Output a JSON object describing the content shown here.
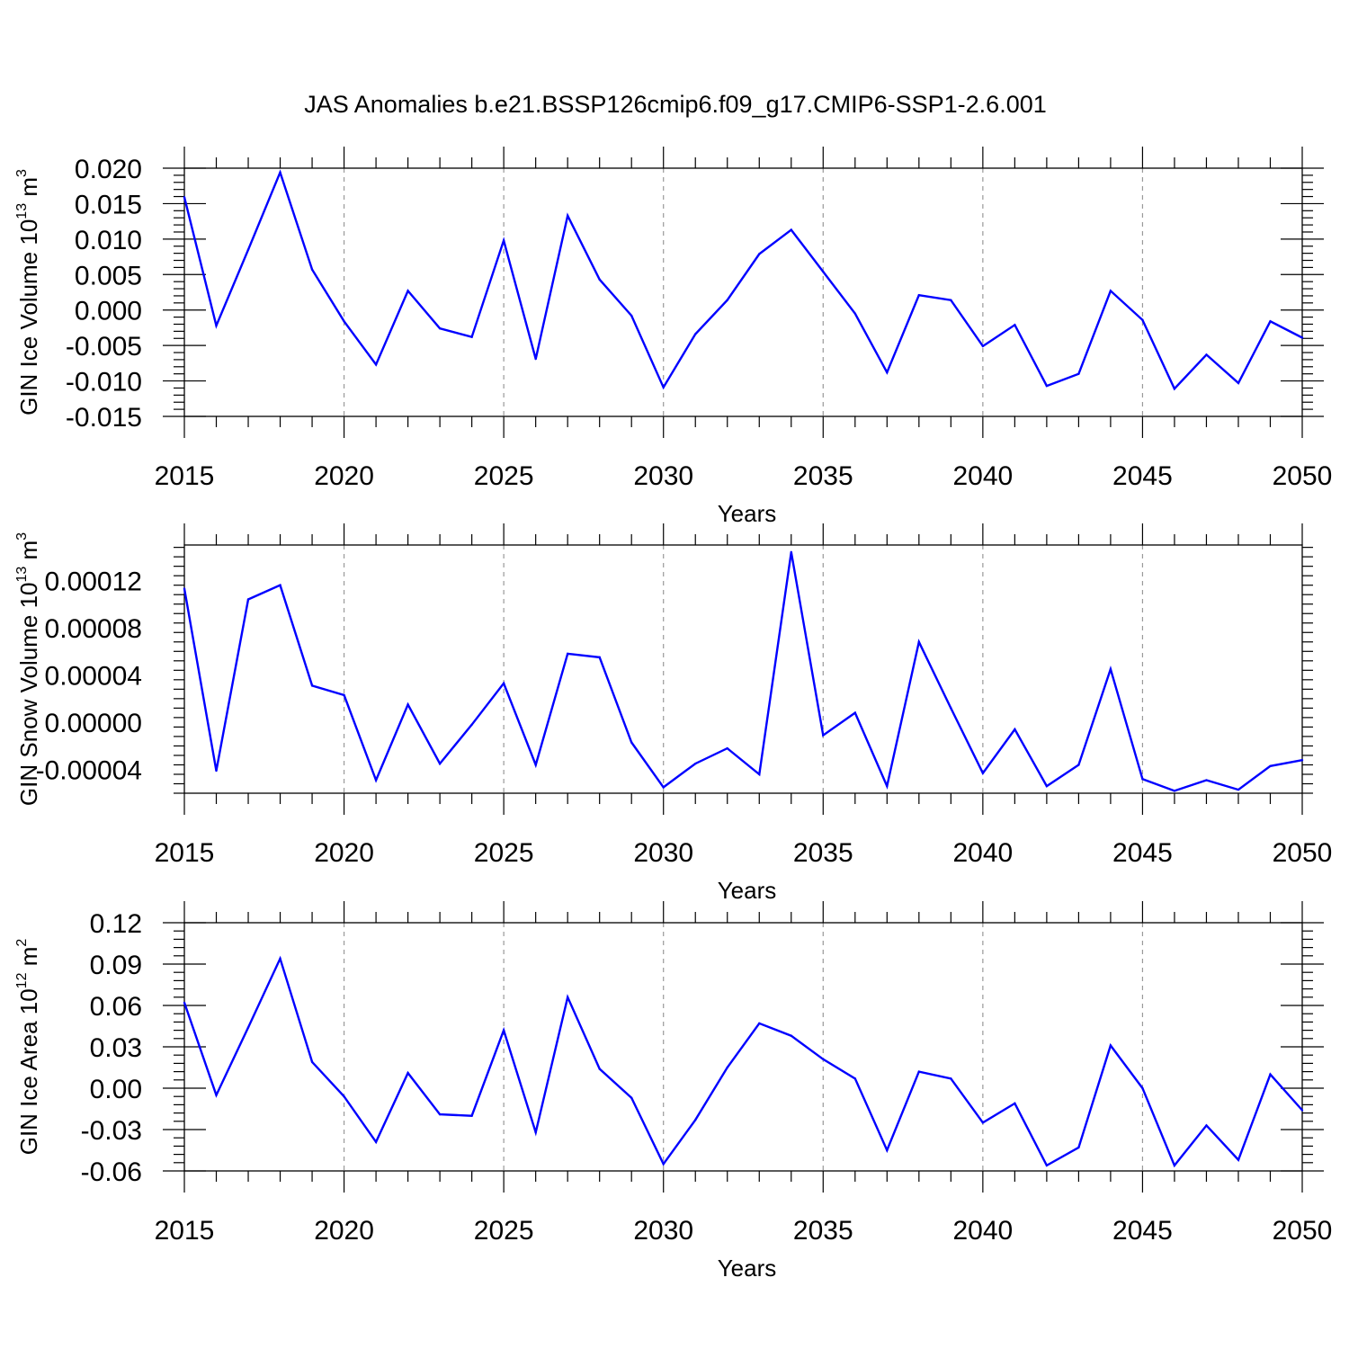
{
  "title": "JAS Anomalies b.e21.BSSP126cmip6.f09_g17.CMIP6-SSP1-2.6.001",
  "colors": {
    "line": "#0000ff",
    "axis": "#000000",
    "grid": "#999999"
  },
  "chart_data": [
    {
      "type": "line",
      "ylabel": {
        "base": "GIN Ice Volume 10",
        "exp": "13",
        "unit": " m",
        "unit_exp": "3"
      },
      "xlabel": "Years",
      "xlim": [
        2015,
        2050
      ],
      "ylim": [
        -0.015,
        0.02
      ],
      "xticks": [
        "2015",
        "2020",
        "2025",
        "2030",
        "2035",
        "2040",
        "2045",
        "2050"
      ],
      "yticks": [
        "0.020",
        "0.015",
        "0.010",
        "0.005",
        "0.000",
        "-0.005",
        "-0.010",
        "-0.015"
      ],
      "grid": "x-dashed",
      "x": [
        2015,
        2016,
        2017,
        2018,
        2019,
        2020,
        2021,
        2022,
        2023,
        2024,
        2025,
        2026,
        2027,
        2028,
        2029,
        2030,
        2031,
        2032,
        2033,
        2034,
        2035,
        2036,
        2037,
        2038,
        2039,
        2040,
        2041,
        2042,
        2043,
        2044,
        2045,
        2046,
        2047,
        2048,
        2049,
        2050
      ],
      "values": [
        0.0159,
        -0.0022,
        0.0085,
        0.0194,
        0.0057,
        -0.0016,
        -0.0077,
        0.0027,
        -0.0026,
        -0.0038,
        0.0098,
        -0.0069,
        0.0133,
        0.0043,
        -0.0008,
        -0.0109,
        -0.0034,
        0.0014,
        0.0079,
        0.0113,
        0.0054,
        -0.0005,
        -0.0088,
        0.0021,
        0.0014,
        -0.0051,
        -0.0021,
        -0.0107,
        -0.009,
        0.0027,
        -0.0014,
        -0.0111,
        -0.0063,
        -0.0103,
        -0.0016,
        -0.0039
      ]
    },
    {
      "type": "line",
      "ylabel": {
        "base": "GIN Snow Volume 10",
        "exp": "13",
        "unit": " m",
        "unit_exp": "3"
      },
      "xlabel": "Years",
      "xlim": [
        2015,
        2050
      ],
      "ylim": [
        -6e-05,
        0.00015
      ],
      "xticks": [
        "2015",
        "2020",
        "2025",
        "2030",
        "2035",
        "2040",
        "2045",
        "2050"
      ],
      "yticks": [
        "0.00012",
        "0.00008",
        "0.00004",
        "0.00000",
        "-0.00004"
      ],
      "grid": "x-dashed",
      "x": [
        2015,
        2016,
        2017,
        2018,
        2019,
        2020,
        2021,
        2022,
        2023,
        2024,
        2025,
        2026,
        2027,
        2028,
        2029,
        2030,
        2031,
        2032,
        2033,
        2034,
        2035,
        2036,
        2037,
        2038,
        2039,
        2040,
        2041,
        2042,
        2043,
        2044,
        2045,
        2046,
        2047,
        2048,
        2049,
        2050
      ],
      "values": [
        0.000113,
        -4.1e-05,
        0.000104,
        0.000116,
        3.1e-05,
        2.3e-05,
        -4.9e-05,
        1.5e-05,
        -3.5e-05,
        -2e-06,
        3.3e-05,
        -3.6e-05,
        5.8e-05,
        5.5e-05,
        -1.7e-05,
        -5.5e-05,
        -3.5e-05,
        -2.2e-05,
        -4.4e-05,
        0.000144,
        -1.1e-05,
        8e-06,
        -5.4e-05,
        6.8e-05,
        1.2e-05,
        -4.3e-05,
        -6e-06,
        -5.4e-05,
        -3.6e-05,
        4.5e-05,
        -4.8e-05,
        -5.8e-05,
        -4.9e-05,
        -5.7e-05,
        -3.7e-05,
        -3.2e-05
      ]
    },
    {
      "type": "line",
      "ylabel": {
        "base": "GIN Ice Area 10",
        "exp": "12",
        "unit": " m",
        "unit_exp": "2"
      },
      "xlabel": "Years",
      "xlim": [
        2015,
        2050
      ],
      "ylim": [
        -0.06,
        0.12
      ],
      "xticks": [
        "2015",
        "2020",
        "2025",
        "2030",
        "2035",
        "2040",
        "2045",
        "2050"
      ],
      "yticks": [
        "0.12",
        "0.09",
        "0.06",
        "0.03",
        "0.00",
        "-0.03",
        "-0.06"
      ],
      "grid": "x-dashed",
      "x": [
        2015,
        2016,
        2017,
        2018,
        2019,
        2020,
        2021,
        2022,
        2023,
        2024,
        2025,
        2026,
        2027,
        2028,
        2029,
        2030,
        2031,
        2032,
        2033,
        2034,
        2035,
        2036,
        2037,
        2038,
        2039,
        2040,
        2041,
        2042,
        2043,
        2044,
        2045,
        2046,
        2047,
        2048,
        2049,
        2050
      ],
      "values": [
        0.062,
        -0.005,
        0.044,
        0.094,
        0.019,
        -0.006,
        -0.039,
        0.011,
        -0.019,
        -0.02,
        0.042,
        -0.032,
        0.066,
        0.014,
        -0.007,
        -0.055,
        -0.023,
        0.015,
        0.047,
        0.038,
        0.021,
        0.007,
        -0.045,
        0.012,
        0.007,
        -0.025,
        -0.011,
        -0.056,
        -0.043,
        0.031,
        0.0,
        -0.056,
        -0.027,
        -0.052,
        0.01,
        -0.016
      ]
    }
  ]
}
